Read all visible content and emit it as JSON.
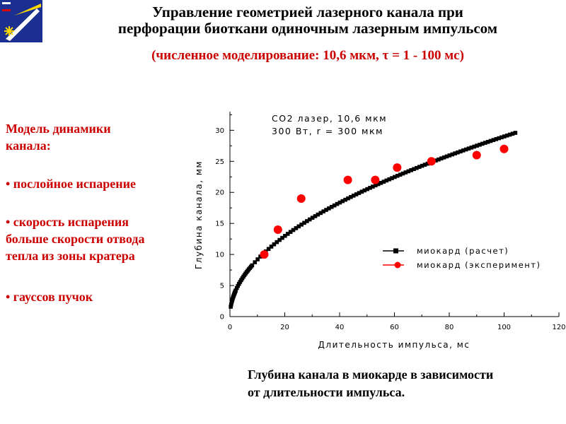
{
  "header": {
    "title_line1": "Управление геометрией лазерного канала при",
    "title_line2": "перфорации биоткани одиночным лазерным импульсом",
    "subtitle": "(численное моделирование: 10,6 мкм, τ = 1 - 100 мс)"
  },
  "colors": {
    "accent": "#cc0000",
    "marker_red": "#ff0000",
    "line_black": "#000000",
    "logo_blue": "#1a2f8f",
    "logo_yellow": "#ffd800"
  },
  "model": {
    "heading_line1": "Модель  динамики",
    "heading_line2": "канала:",
    "items": [
      [
        "• послойное испарение"
      ],
      [
        "• скорость испарения",
        "больше скорости отвода",
        "тепла из зоны кратера"
      ],
      [
        "• гауссов пучок"
      ]
    ]
  },
  "caption": {
    "line1": "Глубина канала в миокарде в зависимости",
    "line2": "от длительности импульса."
  },
  "chart_data": {
    "type": "scatter",
    "annotation_line1": "СО2 лазер,   10,6 мкм",
    "annotation_line2": "300 Вт,  r = 300 мкм",
    "xlabel": "Длительность импульса, мс",
    "ylabel": "Глубина канала, мм",
    "xlim": [
      0,
      120
    ],
    "ylim": [
      0,
      33
    ],
    "xticks": [
      0,
      20,
      40,
      60,
      80,
      100,
      120
    ],
    "yticks": [
      0,
      5,
      10,
      15,
      20,
      25,
      30
    ],
    "legend_position": "right",
    "series": [
      {
        "name": "миокард (расчет)",
        "marker": "square",
        "color": "#000000",
        "x_range": [
          0.3,
          105
        ],
        "x_step": 1,
        "formula": "y = 2.9 * x^0.5",
        "y_at_x": {
          "1": 2.9,
          "10": 9.2,
          "25": 14.5,
          "50": 20.5,
          "75": 25.1,
          "105": 29.7
        }
      },
      {
        "name": "миокард (эксперимент)",
        "marker": "circle",
        "color": "#ff0000",
        "x": [
          12.5,
          17.5,
          26,
          43,
          53,
          61,
          73.5,
          90,
          100
        ],
        "y": [
          10,
          14,
          19,
          22,
          22,
          24,
          25,
          26,
          27
        ]
      }
    ]
  }
}
